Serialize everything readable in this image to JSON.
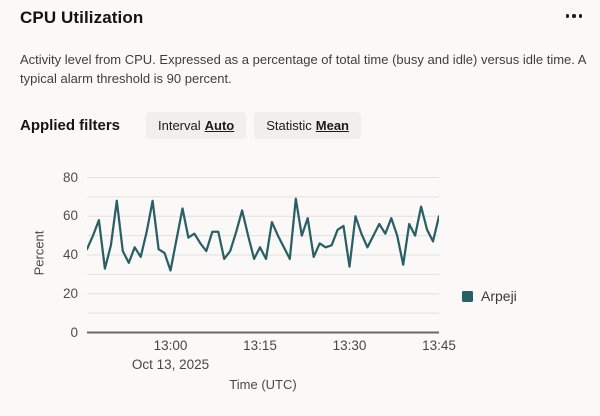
{
  "header": {
    "title": "CPU Utilization",
    "menu_icon": "ellipsis"
  },
  "description": "Activity level from CPU. Expressed as a percentage of total time (busy and idle) versus idle time. A typical alarm threshold is 90 percent.",
  "filters": {
    "label": "Applied filters",
    "chips": [
      {
        "name": "Interval",
        "value": "Auto"
      },
      {
        "name": "Statistic",
        "value": "Mean"
      }
    ]
  },
  "chart_data": {
    "type": "line",
    "ylabel": "Percent",
    "xlabel": "Time (UTC)",
    "ylim": [
      0,
      80
    ],
    "yticks": [
      0,
      20,
      40,
      60,
      80
    ],
    "grid_step": 10,
    "grid": "horizontal",
    "xticks": [
      "13:00",
      "13:15",
      "13:30",
      "13:45"
    ],
    "date_label": "Oct 13, 2025",
    "legend_position": "right",
    "colors": {
      "gridline": "#e3e1de",
      "baseline": "#6e6b67",
      "series1": "#2b5f66"
    },
    "series": [
      {
        "name": "Arpeji",
        "color": "#2b5f66",
        "x": [
          "12:46",
          "12:47",
          "12:48",
          "12:49",
          "12:50",
          "12:51",
          "12:52",
          "12:53",
          "12:54",
          "12:55",
          "12:56",
          "12:57",
          "12:58",
          "12:59",
          "13:00",
          "13:01",
          "13:02",
          "13:03",
          "13:04",
          "13:05",
          "13:06",
          "13:07",
          "13:08",
          "13:09",
          "13:10",
          "13:11",
          "13:12",
          "13:13",
          "13:14",
          "13:15",
          "13:16",
          "13:17",
          "13:18",
          "13:19",
          "13:20",
          "13:21",
          "13:22",
          "13:23",
          "13:24",
          "13:25",
          "13:26",
          "13:27",
          "13:28",
          "13:29",
          "13:30",
          "13:31",
          "13:32",
          "13:33",
          "13:34",
          "13:35",
          "13:36",
          "13:37",
          "13:38",
          "13:39",
          "13:40",
          "13:41",
          "13:42",
          "13:43",
          "13:44",
          "13:45"
        ],
        "values": [
          43,
          50,
          58,
          33,
          45,
          68,
          42,
          36,
          44,
          39,
          52,
          68,
          43,
          41,
          32,
          48,
          64,
          49,
          51,
          46,
          42,
          52,
          52,
          38,
          42,
          52,
          63,
          50,
          38,
          44,
          38,
          57,
          50,
          44,
          38,
          69,
          50,
          59,
          39,
          46,
          44,
          45,
          53,
          55,
          34,
          60,
          51,
          44,
          50,
          56,
          51,
          59,
          50,
          35,
          56,
          50,
          65,
          53,
          47,
          60
        ]
      }
    ]
  }
}
